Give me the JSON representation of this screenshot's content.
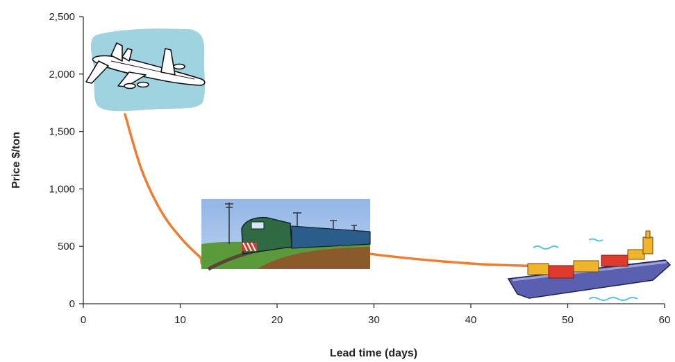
{
  "chart_data": {
    "type": "line",
    "title": "",
    "xlabel": "Lead time (days)",
    "ylabel": "Price $/ton",
    "xlim": [
      0,
      60
    ],
    "ylim": [
      0,
      2500
    ],
    "x_ticks": [
      0,
      10,
      20,
      30,
      40,
      50,
      60
    ],
    "y_ticks": [
      0,
      500,
      1000,
      1500,
      2000,
      2500
    ],
    "x_tick_labels": [
      "0",
      "10",
      "20",
      "30",
      "40",
      "50",
      "60"
    ],
    "y_tick_labels": [
      "0",
      "500",
      "1,000",
      "1,500",
      "2,000",
      "2,500"
    ],
    "grid": false,
    "legend": "none",
    "series": [
      {
        "color": "#f07c2f",
        "x": [
          4.3,
          6,
          8,
          10,
          12,
          13,
          20,
          30,
          40,
          46.5
        ],
        "y": [
          1650,
          1170,
          810,
          580,
          410,
          350,
          560,
          430,
          350,
          330
        ]
      }
    ],
    "annotations": [
      {
        "icon": "airplane-icon",
        "x": 4,
        "y": 2000
      },
      {
        "icon": "train-icon",
        "x": 21,
        "y": 530
      },
      {
        "icon": "cargo-ship-icon",
        "x": 53,
        "y": 260
      }
    ]
  }
}
